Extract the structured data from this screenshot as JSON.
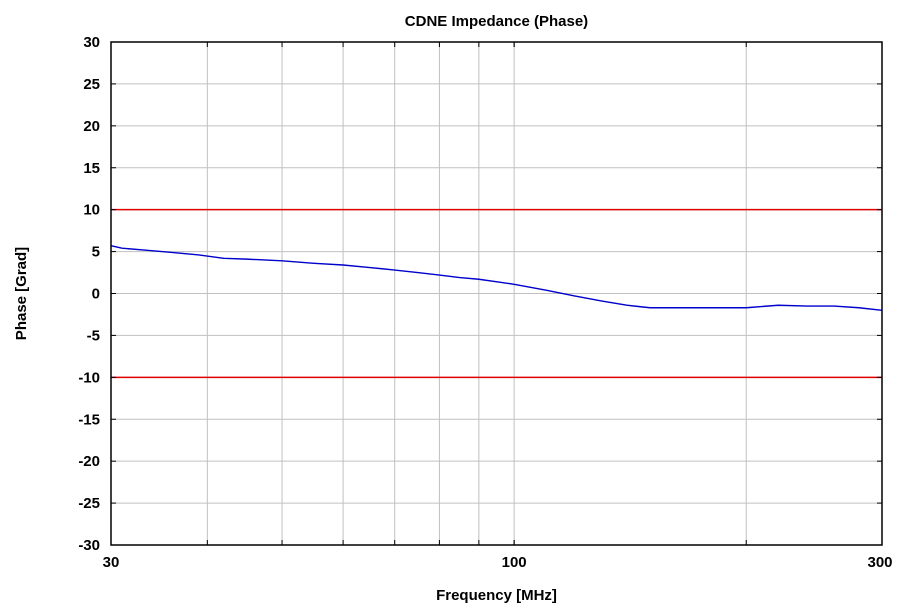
{
  "chart_data": {
    "type": "line",
    "title": "CDNE Impedance (Phase)",
    "xlabel": "Frequency [MHz]",
    "ylabel": "Phase [Grad]",
    "xscale": "log",
    "xlim": [
      30,
      300
    ],
    "ylim": [
      -30,
      30
    ],
    "grid": true,
    "x_gridlines": [
      40,
      50,
      60,
      70,
      80,
      90,
      100,
      200
    ],
    "y_gridlines": [
      -25,
      -20,
      -15,
      -10,
      -5,
      0,
      5,
      10,
      15,
      20,
      25
    ],
    "x_ticks": [
      {
        "value": 30,
        "label": "30"
      },
      {
        "value": 100,
        "label": "100"
      },
      {
        "value": 300,
        "label": "300"
      }
    ],
    "y_ticks": [
      {
        "value": 30,
        "label": "30"
      },
      {
        "value": 25,
        "label": "25"
      },
      {
        "value": 20,
        "label": "20"
      },
      {
        "value": 15,
        "label": "15"
      },
      {
        "value": 10,
        "label": "10"
      },
      {
        "value": 5,
        "label": "5"
      },
      {
        "value": 0,
        "label": "0"
      },
      {
        "value": -5,
        "label": "-5"
      },
      {
        "value": -10,
        "label": "-10"
      },
      {
        "value": -15,
        "label": "-15"
      },
      {
        "value": -20,
        "label": "-20"
      },
      {
        "value": -25,
        "label": "-25"
      },
      {
        "value": -30,
        "label": "-30"
      }
    ],
    "limits": [
      {
        "value": 10,
        "color": "#e00000"
      },
      {
        "value": -10,
        "color": "#e00000"
      }
    ],
    "series": [
      {
        "color": "#0000cc",
        "x": [
          30,
          31,
          33,
          36,
          39,
          42,
          45,
          50,
          55,
          60,
          65,
          70,
          75,
          80,
          85,
          90,
          95,
          100,
          110,
          120,
          130,
          140,
          150,
          160,
          180,
          200,
          220,
          240,
          260,
          280,
          300
        ],
        "y": [
          5.7,
          5.4,
          5.2,
          4.9,
          4.6,
          4.2,
          4.1,
          3.9,
          3.6,
          3.4,
          3.1,
          2.8,
          2.5,
          2.2,
          1.9,
          1.7,
          1.4,
          1.1,
          0.4,
          -0.3,
          -0.9,
          -1.4,
          -1.7,
          -1.7,
          -1.7,
          -1.7,
          -1.4,
          -1.5,
          -1.5,
          -1.7,
          -2.0
        ]
      }
    ]
  }
}
